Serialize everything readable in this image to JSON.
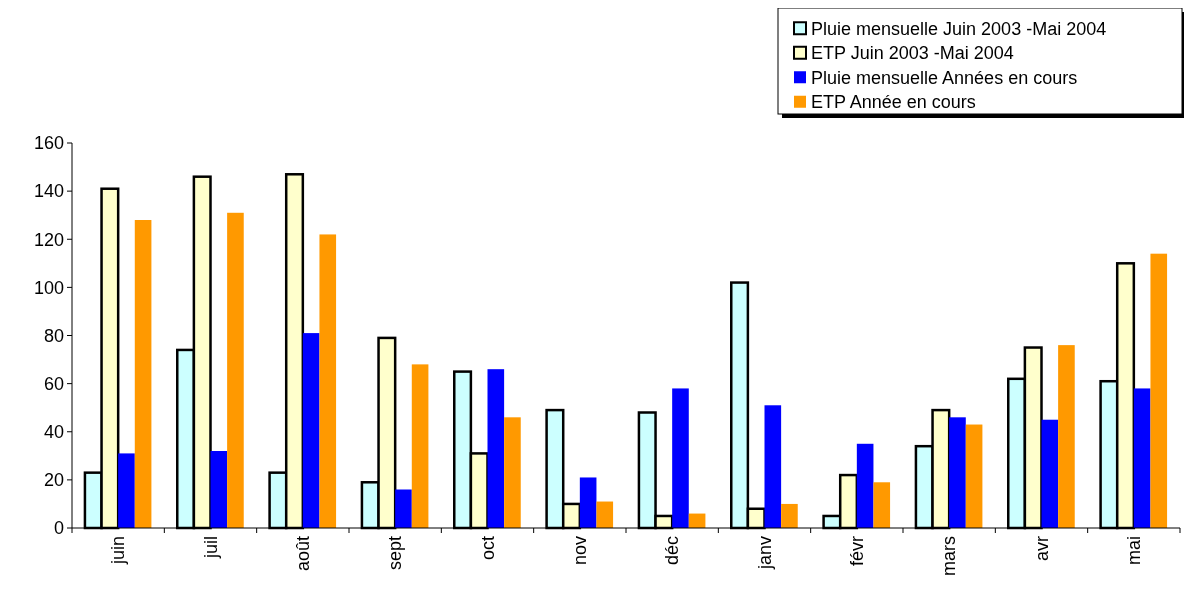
{
  "chart_data": {
    "type": "bar",
    "categories": [
      "juin",
      "juil",
      "août",
      "sept",
      "oct",
      "nov",
      "déc",
      "janv",
      "févr",
      "mars",
      "avr",
      "mai"
    ],
    "series": [
      {
        "name": "Pluie mensuelle Juin 2003 -Mai 2004",
        "color": "#ccffff",
        "values": [
          23,
          74,
          23,
          19,
          65,
          49,
          48,
          102,
          5,
          34,
          62,
          61
        ]
      },
      {
        "name": "ETP Juin 2003 -Mai 2004",
        "color": "#ffffcc",
        "values": [
          141,
          146,
          147,
          79,
          31,
          10,
          5,
          8,
          22,
          49,
          75,
          110
        ]
      },
      {
        "name": "Pluie mensuelle Années en cours",
        "color": "#0000ff",
        "values": [
          31,
          32,
          81,
          16,
          66,
          21,
          58,
          51,
          35,
          46,
          45,
          58
        ]
      },
      {
        "name": "ETP Année en cours",
        "color": "#ff9900",
        "values": [
          128,
          131,
          122,
          68,
          46,
          11,
          6,
          10,
          19,
          43,
          76,
          114
        ]
      }
    ],
    "ylim": [
      0,
      160
    ],
    "yticks": [
      0,
      20,
      40,
      60,
      80,
      100,
      120,
      140,
      160
    ],
    "grid": false,
    "legend": "top right"
  }
}
